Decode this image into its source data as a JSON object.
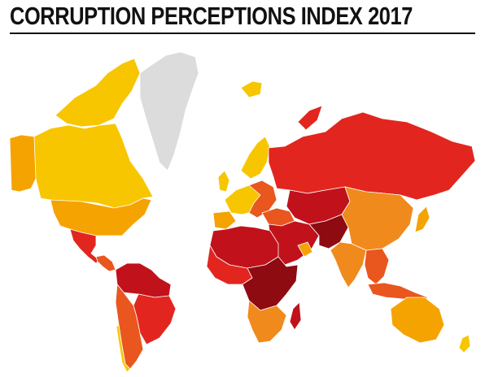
{
  "title": "CORRUPTION PERCEPTIONS INDEX 2017",
  "colors": {
    "very_clean": "#f7c600",
    "clean": "#f5a300",
    "mid_clean": "#f08a1c",
    "mid": "#e9561e",
    "corrupt": "#e2261f",
    "very_corrupt": "#c1121b",
    "most_corrupt": "#8e0b12",
    "no_data": "#dcdcdc"
  }
}
